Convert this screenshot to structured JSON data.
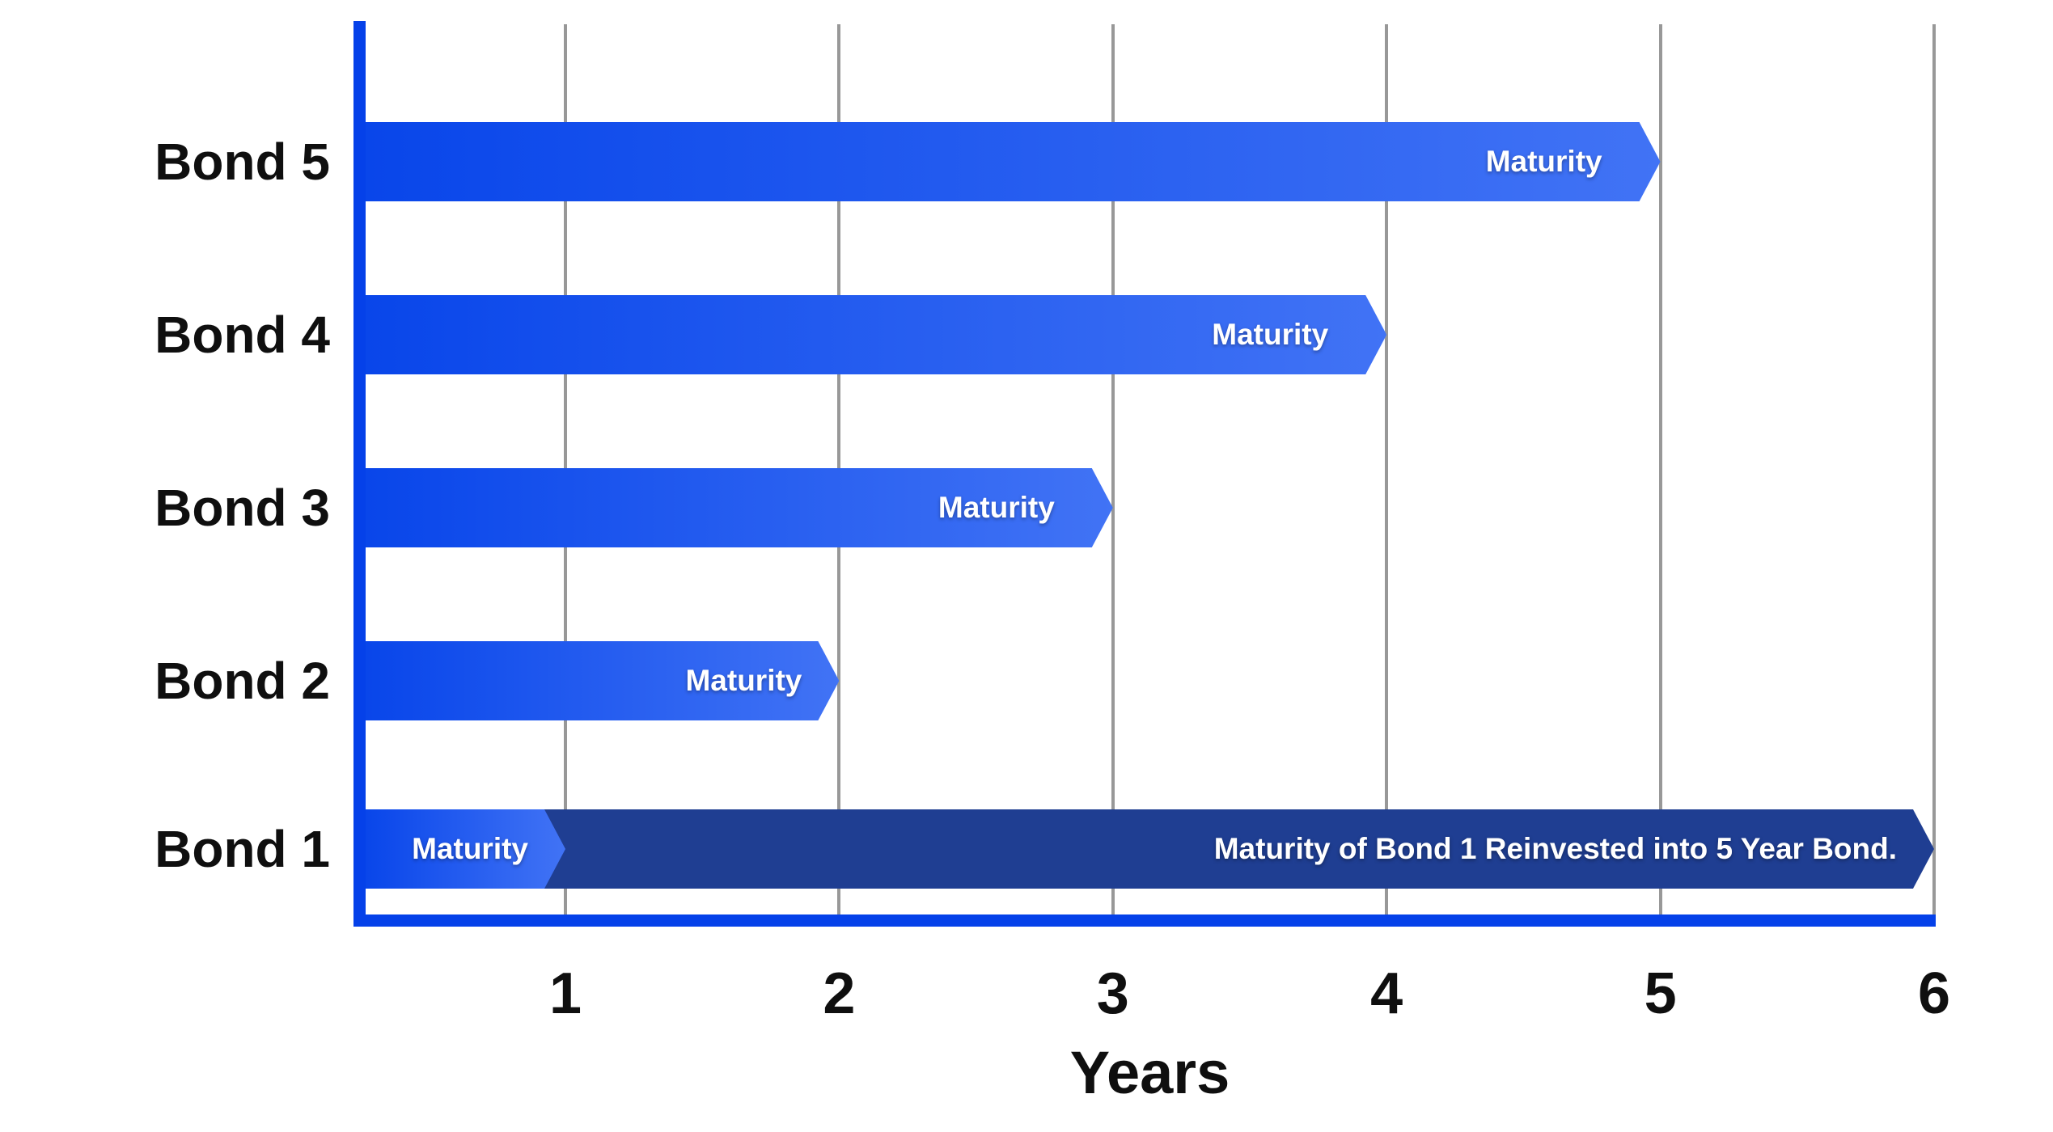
{
  "chart_data": {
    "type": "bar",
    "orientation": "horizontal",
    "title": "",
    "xlabel": "Years",
    "x_ticks": [
      "1",
      "2",
      "3",
      "4",
      "5",
      "6"
    ],
    "xlim": [
      0,
      6
    ],
    "grid": "vertical-gridlines-on",
    "rows": [
      {
        "category": "Bond 5",
        "segments": [
          {
            "label": "Maturity",
            "start": 0,
            "end": 5,
            "style": "gradient-blue"
          }
        ]
      },
      {
        "category": "Bond 4",
        "segments": [
          {
            "label": "Maturity",
            "start": 0,
            "end": 4,
            "style": "gradient-blue"
          }
        ]
      },
      {
        "category": "Bond 3",
        "segments": [
          {
            "label": "Maturity",
            "start": 0,
            "end": 3,
            "style": "gradient-blue"
          }
        ]
      },
      {
        "category": "Bond 2",
        "segments": [
          {
            "label": "Maturity",
            "start": 0,
            "end": 2,
            "style": "gradient-blue"
          }
        ]
      },
      {
        "category": "Bond 1",
        "segments": [
          {
            "label": "Maturity",
            "start": 0,
            "end": 1,
            "style": "gradient-blue"
          },
          {
            "label": "Maturity of Bond 1 Reinvested into 5 Year Bond.",
            "start": 1,
            "end": 6,
            "style": "solid-navy"
          }
        ]
      }
    ],
    "colors": {
      "bar_gradient_start": "#0946EA",
      "bar_gradient_end": "#4173F5",
      "navy_bar": "#1F3E92",
      "axis_blue": "#0541E9",
      "gridline_gray": "#989898",
      "category_text": "#0f0f0f",
      "bar_text": "#FFFFFF"
    }
  }
}
